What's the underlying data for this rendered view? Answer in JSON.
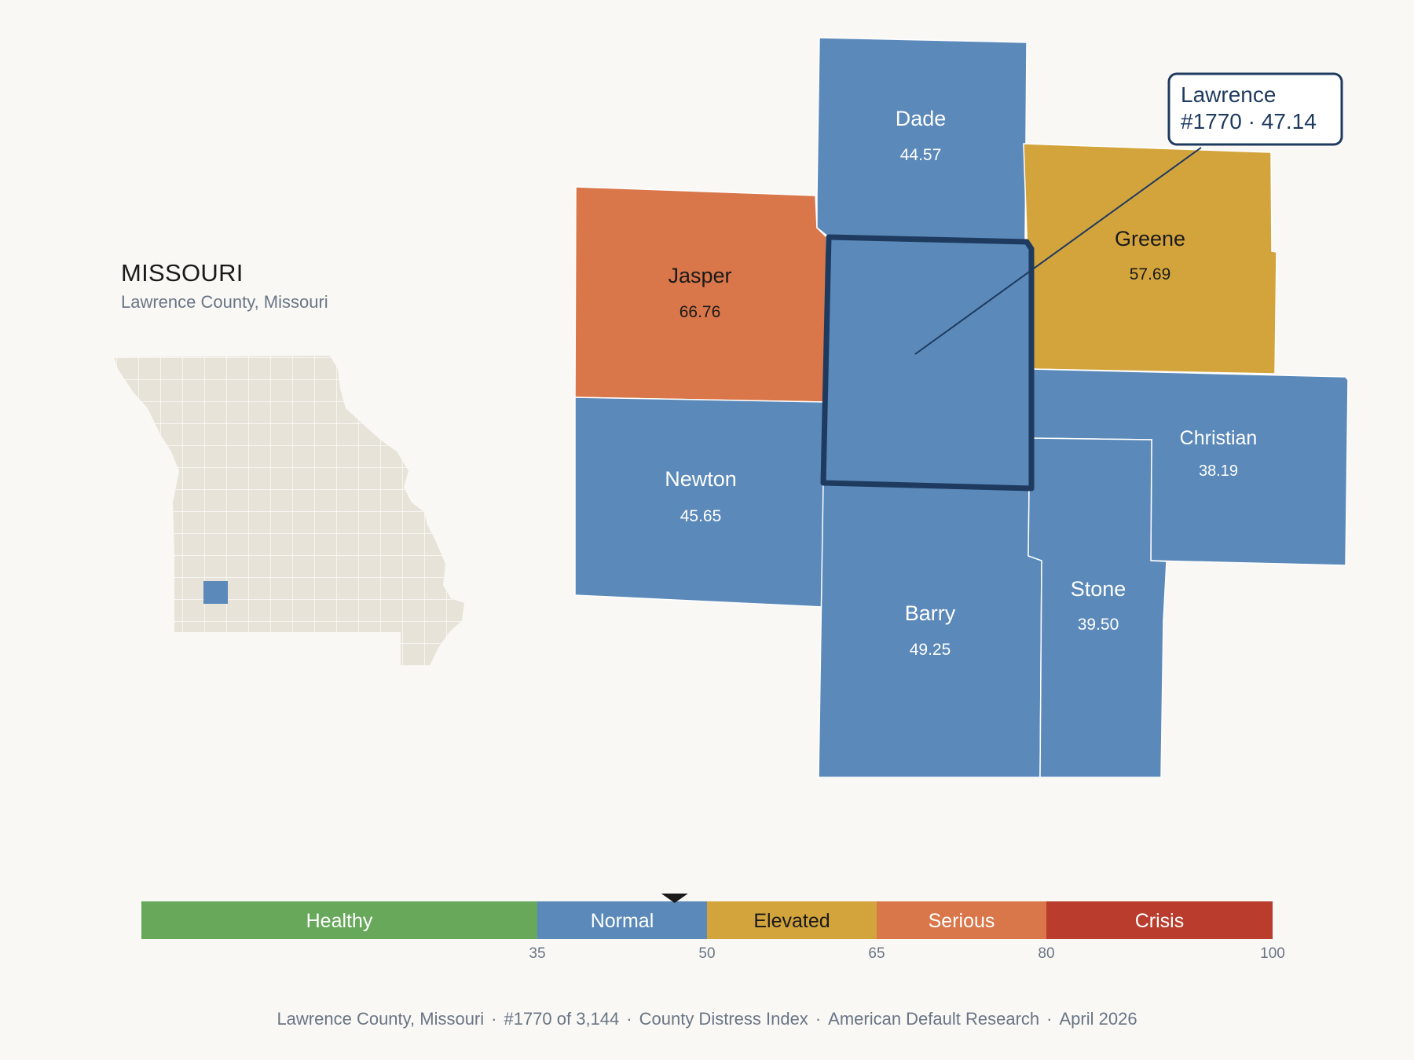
{
  "header": {
    "state": "MISSOURI",
    "subtitle": "Lawrence County, Missouri"
  },
  "map": {
    "focus": {
      "name": "Lawrence",
      "rank": "#1770",
      "value": "47.14",
      "color": "#5b89b9"
    },
    "callout": {
      "line1": "Lawrence",
      "line2": "#1770 · 47.14"
    },
    "neighbors": [
      {
        "id": "dade",
        "name": "Dade",
        "value": "44.57",
        "category": "Normal",
        "color": "#5b89b9",
        "text_color": "#ffffff"
      },
      {
        "id": "jasper",
        "name": "Jasper",
        "value": "66.76",
        "category": "Serious",
        "color": "#d9764a",
        "text_color": "#1a1a1a"
      },
      {
        "id": "greene",
        "name": "Greene",
        "value": "57.69",
        "category": "Elevated",
        "color": "#d4a43c",
        "text_color": "#1a1a1a"
      },
      {
        "id": "newton",
        "name": "Newton",
        "value": "45.65",
        "category": "Normal",
        "color": "#5b89b9",
        "text_color": "#ffffff"
      },
      {
        "id": "christian",
        "name": "Christian",
        "value": "38.19",
        "category": "Normal",
        "color": "#5b89b9",
        "text_color": "#ffffff"
      },
      {
        "id": "barry",
        "name": "Barry",
        "value": "49.25",
        "category": "Normal",
        "color": "#5b89b9",
        "text_color": "#ffffff"
      },
      {
        "id": "stone",
        "name": "Stone",
        "value": "39.50",
        "category": "Normal",
        "color": "#5b89b9",
        "text_color": "#ffffff"
      }
    ]
  },
  "legend": {
    "bands": [
      {
        "label": "Healthy",
        "from": 0,
        "to": 35,
        "color": "#67a85a",
        "text_color": "#ffffff"
      },
      {
        "label": "Normal",
        "from": 35,
        "to": 50,
        "color": "#5b89b9",
        "text_color": "#ffffff"
      },
      {
        "label": "Elevated",
        "from": 50,
        "to": 65,
        "color": "#d4a43c",
        "text_color": "#1a1a1a"
      },
      {
        "label": "Serious",
        "from": 65,
        "to": 80,
        "color": "#d9764a",
        "text_color": "#ffffff"
      },
      {
        "label": "Crisis",
        "from": 80,
        "to": 100,
        "color": "#b93c2c",
        "text_color": "#ffffff"
      }
    ],
    "ticks": [
      "35",
      "50",
      "65",
      "80",
      "100"
    ],
    "marker_value": 47.14
  },
  "footer": {
    "county": "Lawrence County, Missouri",
    "rank": "#1770 of 3,144",
    "index": "County Distress Index",
    "source": "American Default Research",
    "date": "April 2026"
  },
  "colors": {
    "background": "#f9f8f5",
    "inset_fill": "#e8e3d8",
    "focus_outline": "#1e3a5f"
  }
}
